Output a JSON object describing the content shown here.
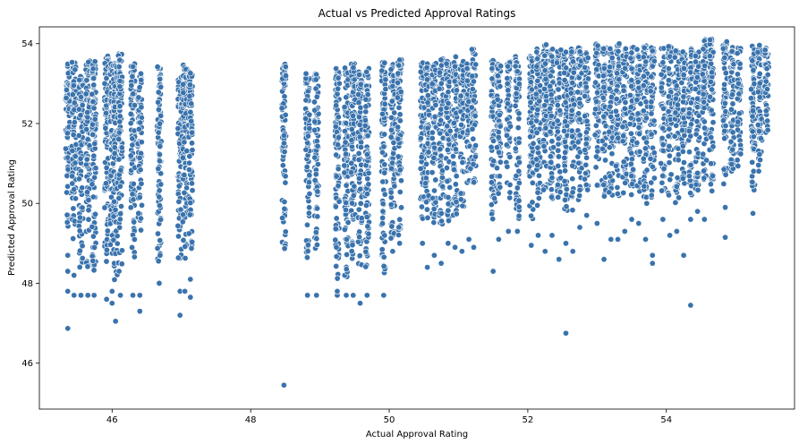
{
  "chart_data": {
    "type": "scatter",
    "title": "Actual vs Predicted Approval Ratings",
    "xlabel": "Actual Approval Rating",
    "ylabel": "Predicted Approval Rating",
    "xlim": [
      44.95,
      55.85
    ],
    "ylim": [
      44.85,
      54.42
    ],
    "xticks": [
      46,
      48,
      50,
      52,
      54
    ],
    "yticks": [
      46,
      48,
      50,
      52,
      54
    ],
    "grid": false,
    "legend": "none",
    "point_color": "#3a73ad",
    "columns": [
      {
        "x": 45.36,
        "y_min": 49.3,
        "y_max": 53.5,
        "outliers": [
          48.7,
          48.3,
          47.8,
          46.87
        ]
      },
      {
        "x": 45.45,
        "y_min": 49.0,
        "y_max": 53.6,
        "outliers": [
          47.7,
          48.2
        ]
      },
      {
        "x": 45.55,
        "y_min": 48.4,
        "y_max": 53.2,
        "outliers": [
          47.7
        ]
      },
      {
        "x": 45.65,
        "y_min": 48.2,
        "y_max": 53.6,
        "outliers": [
          47.7
        ]
      },
      {
        "x": 45.74,
        "y_min": 48.3,
        "y_max": 53.65,
        "outliers": [
          47.7
        ]
      },
      {
        "x": 45.92,
        "y_min": 48.5,
        "y_max": 53.7,
        "outliers": [
          47.6
        ]
      },
      {
        "x": 46.0,
        "y_min": 48.6,
        "y_max": 53.6,
        "outliers": [
          47.5,
          47.8
        ]
      },
      {
        "x": 46.05,
        "y_min": 48.0,
        "y_max": 53.5,
        "outliers": [
          47.05
        ]
      },
      {
        "x": 46.12,
        "y_min": 48.3,
        "y_max": 53.75,
        "outliers": [
          47.7
        ]
      },
      {
        "x": 46.3,
        "y_min": 48.6,
        "y_max": 53.6,
        "outliers": [
          47.7
        ]
      },
      {
        "x": 46.4,
        "y_min": 49.3,
        "y_max": 53.3,
        "outliers": [
          47.3,
          47.7
        ]
      },
      {
        "x": 46.68,
        "y_min": 48.5,
        "y_max": 53.45,
        "outliers": [
          48.0
        ]
      },
      {
        "x": 46.98,
        "y_min": 48.6,
        "y_max": 53.2,
        "outliers": [
          47.2,
          47.8
        ]
      },
      {
        "x": 47.05,
        "y_min": 48.6,
        "y_max": 53.5,
        "outliers": [
          47.8
        ]
      },
      {
        "x": 47.13,
        "y_min": 48.8,
        "y_max": 53.3,
        "outliers": [
          47.65,
          48.1
        ]
      },
      {
        "x": 48.48,
        "y_min": 48.6,
        "y_max": 53.55,
        "outliers": [
          45.45
        ]
      },
      {
        "x": 48.82,
        "y_min": 48.4,
        "y_max": 53.25,
        "outliers": [
          47.7
        ]
      },
      {
        "x": 48.95,
        "y_min": 48.8,
        "y_max": 53.3,
        "outliers": [
          47.7
        ]
      },
      {
        "x": 49.25,
        "y_min": 48.1,
        "y_max": 53.45,
        "outliers": [
          47.7,
          47.8
        ]
      },
      {
        "x": 49.38,
        "y_min": 48.0,
        "y_max": 53.4,
        "outliers": [
          47.7
        ]
      },
      {
        "x": 49.48,
        "y_min": 48.5,
        "y_max": 53.5,
        "outliers": [
          47.7
        ]
      },
      {
        "x": 49.58,
        "y_min": 48.1,
        "y_max": 53.3,
        "outliers": [
          47.5
        ]
      },
      {
        "x": 49.68,
        "y_min": 48.3,
        "y_max": 53.45,
        "outliers": [
          47.7
        ]
      },
      {
        "x": 49.92,
        "y_min": 48.1,
        "y_max": 53.55,
        "outliers": [
          47.7
        ]
      },
      {
        "x": 50.05,
        "y_min": 49.0,
        "y_max": 53.5,
        "outliers": [
          48.8
        ]
      },
      {
        "x": 50.15,
        "y_min": 49.2,
        "y_max": 53.6,
        "outliers": [
          49.0
        ]
      },
      {
        "x": 50.48,
        "y_min": 49.6,
        "y_max": 53.6,
        "outliers": [
          49.0
        ]
      },
      {
        "x": 50.55,
        "y_min": 49.6,
        "y_max": 53.5,
        "outliers": [
          48.4
        ]
      },
      {
        "x": 50.65,
        "y_min": 49.3,
        "y_max": 53.6,
        "outliers": [
          48.7
        ]
      },
      {
        "x": 50.75,
        "y_min": 49.3,
        "y_max": 53.65,
        "outliers": [
          48.5
        ]
      },
      {
        "x": 50.85,
        "y_min": 49.4,
        "y_max": 53.6,
        "outliers": [
          49.0
        ]
      },
      {
        "x": 50.95,
        "y_min": 49.5,
        "y_max": 53.7,
        "outliers": [
          48.9
        ]
      },
      {
        "x": 51.05,
        "y_min": 49.7,
        "y_max": 53.6,
        "outliers": [
          48.8
        ]
      },
      {
        "x": 51.15,
        "y_min": 50.4,
        "y_max": 53.5,
        "outliers": [
          49.1
        ]
      },
      {
        "x": 51.22,
        "y_min": 50.4,
        "y_max": 53.9,
        "outliers": [
          48.9
        ]
      },
      {
        "x": 51.5,
        "y_min": 49.6,
        "y_max": 53.6,
        "outliers": [
          48.3
        ]
      },
      {
        "x": 51.58,
        "y_min": 50.1,
        "y_max": 53.6,
        "outliers": [
          49.1
        ]
      },
      {
        "x": 51.72,
        "y_min": 50.1,
        "y_max": 53.6,
        "outliers": [
          49.3
        ]
      },
      {
        "x": 51.85,
        "y_min": 49.6,
        "y_max": 53.7,
        "outliers": [
          49.3
        ]
      },
      {
        "x": 52.05,
        "y_min": 49.6,
        "y_max": 53.8,
        "outliers": [
          48.95
        ]
      },
      {
        "x": 52.15,
        "y_min": 49.8,
        "y_max": 53.9,
        "outliers": [
          49.2
        ]
      },
      {
        "x": 52.25,
        "y_min": 50.0,
        "y_max": 54.0,
        "outliers": [
          48.8
        ]
      },
      {
        "x": 52.35,
        "y_min": 50.1,
        "y_max": 53.9,
        "outliers": [
          49.2
        ]
      },
      {
        "x": 52.45,
        "y_min": 49.9,
        "y_max": 53.95,
        "outliers": [
          48.6
        ]
      },
      {
        "x": 52.55,
        "y_min": 49.7,
        "y_max": 53.8,
        "outliers": [
          46.75,
          49.0
        ]
      },
      {
        "x": 52.65,
        "y_min": 49.8,
        "y_max": 53.9,
        "outliers": [
          48.8
        ]
      },
      {
        "x": 52.75,
        "y_min": 50.0,
        "y_max": 53.95,
        "outliers": [
          49.4
        ]
      },
      {
        "x": 52.85,
        "y_min": 50.3,
        "y_max": 53.8,
        "outliers": [
          49.7
        ]
      },
      {
        "x": 53.0,
        "y_min": 50.2,
        "y_max": 54.05,
        "outliers": [
          49.5
        ]
      },
      {
        "x": 53.1,
        "y_min": 50.0,
        "y_max": 53.9,
        "outliers": [
          48.6
        ]
      },
      {
        "x": 53.2,
        "y_min": 50.1,
        "y_max": 53.9,
        "outliers": [
          49.1
        ]
      },
      {
        "x": 53.3,
        "y_min": 50.0,
        "y_max": 54.0,
        "outliers": [
          49.1
        ]
      },
      {
        "x": 53.4,
        "y_min": 50.2,
        "y_max": 53.9,
        "outliers": [
          49.3
        ]
      },
      {
        "x": 53.5,
        "y_min": 50.1,
        "y_max": 53.95,
        "outliers": [
          49.6
        ]
      },
      {
        "x": 53.6,
        "y_min": 50.2,
        "y_max": 53.9,
        "outliers": [
          49.5
        ]
      },
      {
        "x": 53.7,
        "y_min": 50.0,
        "y_max": 53.95,
        "outliers": [
          49.1
        ]
      },
      {
        "x": 53.8,
        "y_min": 50.1,
        "y_max": 53.95,
        "outliers": [
          48.5,
          48.7
        ]
      },
      {
        "x": 53.95,
        "y_min": 50.3,
        "y_max": 53.9,
        "outliers": [
          49.6
        ]
      },
      {
        "x": 54.05,
        "y_min": 50.2,
        "y_max": 53.95,
        "outliers": [
          49.2
        ]
      },
      {
        "x": 54.15,
        "y_min": 50.0,
        "y_max": 53.9,
        "outliers": [
          49.3
        ]
      },
      {
        "x": 54.25,
        "y_min": 50.2,
        "y_max": 53.8,
        "outliers": [
          48.7
        ]
      },
      {
        "x": 54.35,
        "y_min": 50.2,
        "y_max": 53.9,
        "outliers": [
          47.45,
          49.6
        ]
      },
      {
        "x": 54.45,
        "y_min": 50.3,
        "y_max": 53.8,
        "outliers": [
          49.8
        ]
      },
      {
        "x": 54.55,
        "y_min": 50.4,
        "y_max": 54.15,
        "outliers": [
          49.6
        ]
      },
      {
        "x": 54.65,
        "y_min": 50.3,
        "y_max": 54.15,
        "outliers": []
      },
      {
        "x": 54.85,
        "y_min": 50.4,
        "y_max": 54.05,
        "outliers": [
          49.15,
          49.9
        ]
      },
      {
        "x": 54.95,
        "y_min": 50.6,
        "y_max": 53.95,
        "outliers": []
      },
      {
        "x": 55.05,
        "y_min": 50.8,
        "y_max": 53.9,
        "outliers": []
      },
      {
        "x": 55.25,
        "y_min": 50.1,
        "y_max": 53.95,
        "outliers": [
          49.75
        ]
      },
      {
        "x": 55.35,
        "y_min": 50.8,
        "y_max": 54.0,
        "outliers": []
      },
      {
        "x": 55.45,
        "y_min": 51.6,
        "y_max": 53.9,
        "outliers": []
      }
    ]
  }
}
